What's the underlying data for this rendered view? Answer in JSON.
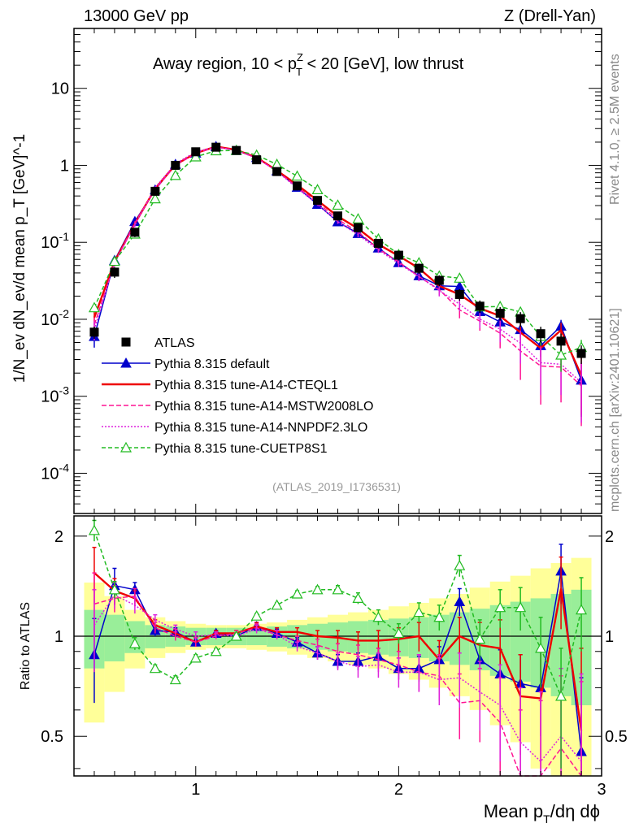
{
  "header": {
    "left": "13000 GeV pp",
    "right": "Z (Drell-Yan)"
  },
  "side_labels": {
    "rivet": "Rivet 4.1.0, ≥ 2.5M events",
    "mcplots": "mcplots.cern.ch [arXiv:2401.10621]"
  },
  "chart_data": {
    "type": "line",
    "title": "Away region, 10 < p_T^Z < 20 [GeV], low thrust",
    "title_parts": {
      "pre": "Away region, 10 < p",
      "sup": "Z",
      "sub": "T",
      "post": " < 20 [GeV], low thrust"
    },
    "analysis_id": "(ATLAS_2019_I1736531)",
    "xlabel": "Mean p_T/dη dφ",
    "xlabel_parts": {
      "pre": "Mean p",
      "sub": "T",
      "post": "/dη dϕ"
    },
    "ylabel": "1/N_ev dN_ev/d mean p_T [GeV]^-1",
    "ratio_ylabel": "Ratio to ATLAS",
    "xlim": [
      0.4,
      3.0
    ],
    "ylim": [
      3e-05,
      60
    ],
    "ratio_ylim": [
      0.38,
      2.3
    ],
    "x_ticks": [
      "1",
      "2",
      "3"
    ],
    "y_ticks": [
      "10^-4",
      "10^-3",
      "10^-2",
      "10^-1",
      "1",
      "10"
    ],
    "ratio_ticks": [
      "0.5",
      "1",
      "2"
    ],
    "x": [
      0.5,
      0.6,
      0.7,
      0.8,
      0.9,
      1.0,
      1.1,
      1.2,
      1.3,
      1.4,
      1.5,
      1.6,
      1.7,
      1.8,
      1.9,
      2.0,
      2.1,
      2.2,
      2.3,
      2.4,
      2.5,
      2.6,
      2.7,
      2.8,
      2.9
    ],
    "data": {
      "name": "ATLAS",
      "values": [
        0.0068,
        0.041,
        0.135,
        0.46,
        1.0,
        1.5,
        1.72,
        1.56,
        1.18,
        0.83,
        0.54,
        0.35,
        0.22,
        0.155,
        0.097,
        0.068,
        0.046,
        0.032,
        0.021,
        0.0148,
        0.012,
        0.0102,
        0.0065,
        0.0052,
        0.0036
      ],
      "band_inner": [
        0.2,
        0.16,
        0.11,
        0.08,
        0.07,
        0.06,
        0.06,
        0.06,
        0.06,
        0.07,
        0.08,
        0.09,
        0.1,
        0.11,
        0.12,
        0.13,
        0.14,
        0.16,
        0.18,
        0.21,
        0.24,
        0.27,
        0.3,
        0.34,
        0.38
      ],
      "band_outer": [
        0.45,
        0.32,
        0.2,
        0.14,
        0.11,
        0.09,
        0.08,
        0.08,
        0.09,
        0.1,
        0.12,
        0.14,
        0.16,
        0.18,
        0.2,
        0.23,
        0.26,
        0.3,
        0.34,
        0.4,
        0.46,
        0.52,
        0.6,
        0.66,
        0.72
      ]
    },
    "series": [
      {
        "name": "Pythia 8.315 default",
        "color": "#0000cc",
        "dash": "",
        "marker": "triangle-filled",
        "ratio": [
          0.88,
          1.42,
          1.38,
          1.04,
          1.03,
          0.96,
          1.02,
          1.0,
          1.07,
          1.02,
          0.96,
          0.89,
          0.84,
          0.84,
          0.87,
          0.8,
          0.8,
          0.85,
          1.27,
          0.85,
          0.77,
          0.72,
          0.7,
          1.57,
          0.45
        ],
        "ratio_err": [
          0.25,
          0.18,
          0.07,
          0.04,
          0.03,
          0.03,
          0.02,
          0.02,
          0.03,
          0.03,
          0.03,
          0.04,
          0.04,
          0.05,
          0.05,
          0.06,
          0.07,
          0.08,
          0.12,
          0.12,
          0.14,
          0.16,
          0.2,
          0.32,
          0.3
        ]
      },
      {
        "name": "Pythia 8.315 tune-A14-CTEQL1",
        "color": "#ee0000",
        "dash": "",
        "marker": "none",
        "ratio": [
          1.55,
          1.37,
          1.3,
          1.08,
          1.02,
          0.96,
          1.02,
          1.02,
          1.07,
          1.03,
          1.03,
          1.0,
          0.99,
          0.97,
          0.97,
          0.98,
          1.0,
          0.85,
          1.0,
          0.94,
          0.92,
          0.66,
          0.65,
          1.39,
          0.52
        ],
        "ratio_err": [
          0.3,
          0.12,
          0.07,
          0.04,
          0.03,
          0.03,
          0.02,
          0.02,
          0.03,
          0.03,
          0.03,
          0.04,
          0.05,
          0.06,
          0.07,
          0.08,
          0.1,
          0.12,
          0.14,
          0.16,
          0.2,
          0.22,
          0.26,
          0.34,
          0.4
        ]
      },
      {
        "name": "Pythia 8.315 tune-A14-MSTW2008LO",
        "color": "#ff1493",
        "dash": "6,3",
        "marker": "none",
        "ratio": [
          1.25,
          1.3,
          1.32,
          1.06,
          1.0,
          0.96,
          1.0,
          1.02,
          1.06,
          1.01,
          0.97,
          0.94,
          0.9,
          0.88,
          0.85,
          0.82,
          0.78,
          0.76,
          0.63,
          0.64,
          0.55,
          0.38,
          0.38,
          0.46,
          0.38
        ],
        "ratio_err": [
          0.3,
          0.12,
          0.07,
          0.04,
          0.03,
          0.03,
          0.02,
          0.02,
          0.03,
          0.03,
          0.03,
          0.04,
          0.05,
          0.06,
          0.07,
          0.08,
          0.1,
          0.12,
          0.14,
          0.16,
          0.2,
          0.22,
          0.26,
          0.3,
          0.35
        ]
      },
      {
        "name": "Pythia 8.315 tune-A14-NNPDF2.3LO",
        "color": "#dd22dd",
        "dash": "2,2",
        "marker": "none",
        "ratio": [
          1.08,
          1.33,
          1.24,
          1.12,
          1.05,
          1.0,
          1.01,
          1.0,
          1.05,
          1.01,
          0.93,
          0.89,
          0.84,
          0.81,
          0.82,
          0.78,
          0.78,
          0.74,
          0.75,
          0.68,
          0.62,
          0.48,
          0.42,
          0.5,
          0.42
        ],
        "ratio_err": [
          0.3,
          0.12,
          0.07,
          0.04,
          0.03,
          0.03,
          0.02,
          0.02,
          0.03,
          0.03,
          0.03,
          0.04,
          0.05,
          0.06,
          0.07,
          0.08,
          0.1,
          0.12,
          0.14,
          0.16,
          0.2,
          0.22,
          0.26,
          0.3,
          0.35
        ]
      },
      {
        "name": "Pythia 8.315 tune-CUETP8S1",
        "color": "#22bb22",
        "dash": "5,3",
        "marker": "triangle-open",
        "ratio": [
          2.08,
          1.38,
          0.95,
          0.8,
          0.74,
          0.86,
          0.9,
          1.0,
          1.15,
          1.24,
          1.34,
          1.38,
          1.38,
          1.3,
          1.14,
          1.02,
          1.18,
          1.14,
          1.63,
          0.98,
          1.22,
          1.22,
          0.92,
          0.66,
          1.2
        ],
        "ratio_err": [
          0.15,
          0.08,
          0.04,
          0.02,
          0.02,
          0.02,
          0.02,
          0.02,
          0.02,
          0.02,
          0.03,
          0.03,
          0.04,
          0.05,
          0.06,
          0.07,
          0.08,
          0.1,
          0.12,
          0.14,
          0.16,
          0.18,
          0.22,
          0.26,
          0.3
        ]
      }
    ]
  }
}
